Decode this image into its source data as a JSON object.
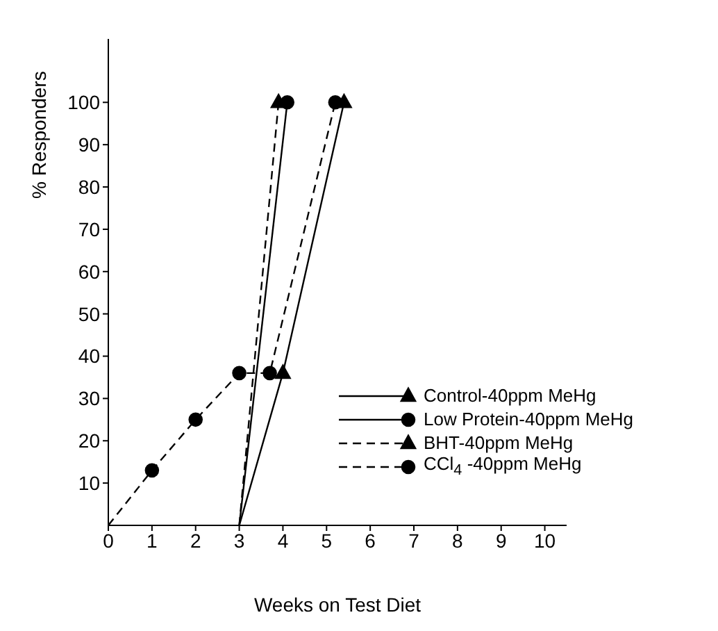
{
  "chart_data": {
    "type": "line",
    "xlabel": "Weeks on Test Diet",
    "ylabel": "% Responders",
    "xlim": [
      0,
      10.5
    ],
    "xticks": [
      0,
      1,
      2,
      3,
      4,
      5,
      6,
      7,
      8,
      9,
      10
    ],
    "ylim": [
      0,
      115
    ],
    "yticks": [
      10,
      20,
      30,
      40,
      50,
      60,
      70,
      80,
      90,
      100
    ],
    "legend": "right",
    "grid": false,
    "series": [
      {
        "name": "Control-40ppm MeHg",
        "color": "#000000",
        "marker": "triangle",
        "line_style": "solid",
        "x": [
          3,
          4,
          5.4
        ],
        "values": [
          0,
          36,
          100
        ]
      },
      {
        "name": "Low Protein-40ppm MeHg",
        "color": "#000000",
        "marker": "circle",
        "line_style": "solid",
        "x": [
          3,
          4.1
        ],
        "values": [
          0,
          100
        ]
      },
      {
        "name": "BHT-40ppm MeHg",
        "color": "#000000",
        "marker": "triangle",
        "line_style": "dashed",
        "x": [
          3,
          3.9
        ],
        "values": [
          0,
          100
        ]
      },
      {
        "name": "CCl$_{4}$ -40ppm MeHg",
        "color": "#000000",
        "marker": "circle",
        "line_style": "dashed",
        "x": [
          0,
          1,
          2,
          3,
          3.7,
          5.2
        ],
        "values": [
          0,
          13,
          25,
          36,
          36,
          100
        ]
      }
    ]
  }
}
